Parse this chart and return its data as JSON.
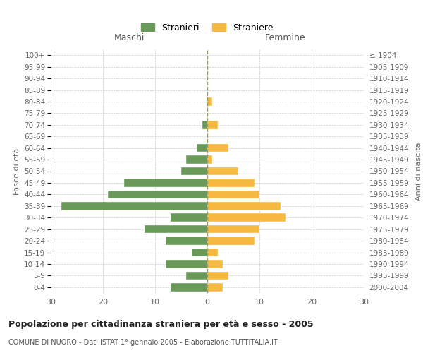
{
  "age_groups": [
    "0-4",
    "5-9",
    "10-14",
    "15-19",
    "20-24",
    "25-29",
    "30-34",
    "35-39",
    "40-44",
    "45-49",
    "50-54",
    "55-59",
    "60-64",
    "65-69",
    "70-74",
    "75-79",
    "80-84",
    "85-89",
    "90-94",
    "95-99",
    "100+"
  ],
  "birth_years": [
    "2000-2004",
    "1995-1999",
    "1990-1994",
    "1985-1989",
    "1980-1984",
    "1975-1979",
    "1970-1974",
    "1965-1969",
    "1960-1964",
    "1955-1959",
    "1950-1954",
    "1945-1949",
    "1940-1944",
    "1935-1939",
    "1930-1934",
    "1925-1929",
    "1920-1924",
    "1915-1919",
    "1910-1914",
    "1905-1909",
    "≤ 1904"
  ],
  "maschi": [
    7,
    4,
    8,
    3,
    8,
    12,
    7,
    28,
    19,
    16,
    5,
    4,
    2,
    0,
    1,
    0,
    0,
    0,
    0,
    0,
    0
  ],
  "femmine": [
    3,
    4,
    3,
    2,
    9,
    10,
    15,
    14,
    10,
    9,
    6,
    1,
    4,
    0,
    2,
    0,
    1,
    0,
    0,
    0,
    0
  ],
  "color_maschi": "#6a9a5a",
  "color_femmine": "#f5b942",
  "title": "Popolazione per cittadinanza straniera per età e sesso - 2005",
  "subtitle": "COMUNE DI NUORO - Dati ISTAT 1° gennaio 2005 - Elaborazione TUTTITALIA.IT",
  "label_maschi": "Maschi",
  "label_femmine": "Femmine",
  "ylabel_left": "Fasce di età",
  "ylabel_right": "Anni di nascita",
  "legend_maschi": "Stranieri",
  "legend_femmine": "Straniere",
  "xlim": 30,
  "background_color": "#ffffff",
  "grid_color": "#cccccc"
}
